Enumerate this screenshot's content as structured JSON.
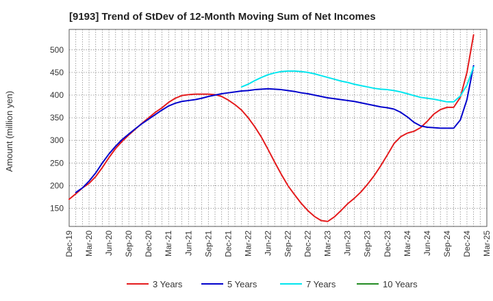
{
  "chart_data": {
    "type": "line",
    "title": "[9193]  Trend of StDev of 12-Month Moving Sum of Net Incomes",
    "ylabel": "Amount (million yen)",
    "xlabel": "",
    "ylim": [
      110,
      545
    ],
    "yticks": [
      150,
      200,
      250,
      300,
      350,
      400,
      450,
      500
    ],
    "x_tick_labels": [
      "Dec-19",
      "Mar-20",
      "Jun-20",
      "Sep-20",
      "Dec-20",
      "Mar-21",
      "Jun-21",
      "Sep-21",
      "Dec-21",
      "Mar-22",
      "Jun-22",
      "Sep-22",
      "Dec-22",
      "Mar-23",
      "Jun-23",
      "Sep-23",
      "Dec-23",
      "Mar-24",
      "Jun-24",
      "Sep-24",
      "Dec-24",
      "Mar-25"
    ],
    "grid": true,
    "legend_position": "bottom",
    "series": [
      {
        "name": "3 Years",
        "color": "#e41a1c",
        "points": [
          [
            "2019-12",
            170
          ],
          [
            "2020-01",
            182
          ],
          [
            "2020-02",
            195
          ],
          [
            "2020-03",
            205
          ],
          [
            "2020-04",
            220
          ],
          [
            "2020-05",
            240
          ],
          [
            "2020-06",
            262
          ],
          [
            "2020-07",
            282
          ],
          [
            "2020-08",
            298
          ],
          [
            "2020-09",
            312
          ],
          [
            "2020-10",
            325
          ],
          [
            "2020-11",
            338
          ],
          [
            "2020-12",
            350
          ],
          [
            "2021-01",
            362
          ],
          [
            "2021-02",
            372
          ],
          [
            "2021-03",
            384
          ],
          [
            "2021-04",
            393
          ],
          [
            "2021-05",
            399
          ],
          [
            "2021-06",
            401
          ],
          [
            "2021-07",
            402
          ],
          [
            "2021-08",
            402
          ],
          [
            "2021-09",
            402
          ],
          [
            "2021-10",
            401
          ],
          [
            "2021-11",
            397
          ],
          [
            "2021-12",
            389
          ],
          [
            "2022-01",
            379
          ],
          [
            "2022-02",
            367
          ],
          [
            "2022-03",
            350
          ],
          [
            "2022-04",
            330
          ],
          [
            "2022-05",
            307
          ],
          [
            "2022-06",
            280
          ],
          [
            "2022-07",
            252
          ],
          [
            "2022-08",
            225
          ],
          [
            "2022-09",
            200
          ],
          [
            "2022-10",
            180
          ],
          [
            "2022-11",
            161
          ],
          [
            "2022-12",
            145
          ],
          [
            "2023-01",
            132
          ],
          [
            "2023-02",
            123
          ],
          [
            "2023-03",
            121
          ],
          [
            "2023-04",
            131
          ],
          [
            "2023-05",
            145
          ],
          [
            "2023-06",
            160
          ],
          [
            "2023-07",
            172
          ],
          [
            "2023-08",
            186
          ],
          [
            "2023-09",
            203
          ],
          [
            "2023-10",
            222
          ],
          [
            "2023-11",
            244
          ],
          [
            "2023-12",
            268
          ],
          [
            "2024-01",
            293
          ],
          [
            "2024-02",
            308
          ],
          [
            "2024-03",
            316
          ],
          [
            "2024-04",
            320
          ],
          [
            "2024-05",
            328
          ],
          [
            "2024-06",
            342
          ],
          [
            "2024-07",
            358
          ],
          [
            "2024-08",
            368
          ],
          [
            "2024-09",
            373
          ],
          [
            "2024-10",
            373
          ],
          [
            "2024-11",
            395
          ],
          [
            "2024-12",
            450
          ],
          [
            "2025-01",
            533
          ]
        ]
      },
      {
        "name": "5 Years",
        "color": "#0000cc",
        "points": [
          [
            "2020-01",
            185
          ],
          [
            "2020-02",
            195
          ],
          [
            "2020-03",
            210
          ],
          [
            "2020-04",
            228
          ],
          [
            "2020-05",
            250
          ],
          [
            "2020-06",
            270
          ],
          [
            "2020-07",
            287
          ],
          [
            "2020-08",
            302
          ],
          [
            "2020-09",
            314
          ],
          [
            "2020-10",
            326
          ],
          [
            "2020-11",
            337
          ],
          [
            "2020-12",
            347
          ],
          [
            "2021-01",
            357
          ],
          [
            "2021-02",
            367
          ],
          [
            "2021-03",
            376
          ],
          [
            "2021-04",
            382
          ],
          [
            "2021-05",
            386
          ],
          [
            "2021-06",
            388
          ],
          [
            "2021-07",
            390
          ],
          [
            "2021-08",
            393
          ],
          [
            "2021-09",
            397
          ],
          [
            "2021-10",
            400
          ],
          [
            "2021-11",
            403
          ],
          [
            "2021-12",
            405
          ],
          [
            "2022-01",
            407
          ],
          [
            "2022-02",
            409
          ],
          [
            "2022-03",
            410
          ],
          [
            "2022-04",
            412
          ],
          [
            "2022-05",
            413
          ],
          [
            "2022-06",
            414
          ],
          [
            "2022-07",
            413
          ],
          [
            "2022-08",
            412
          ],
          [
            "2022-09",
            410
          ],
          [
            "2022-10",
            408
          ],
          [
            "2022-11",
            405
          ],
          [
            "2022-12",
            403
          ],
          [
            "2023-01",
            400
          ],
          [
            "2023-02",
            397
          ],
          [
            "2023-03",
            394
          ],
          [
            "2023-04",
            392
          ],
          [
            "2023-05",
            390
          ],
          [
            "2023-06",
            388
          ],
          [
            "2023-07",
            386
          ],
          [
            "2023-08",
            383
          ],
          [
            "2023-09",
            380
          ],
          [
            "2023-10",
            377
          ],
          [
            "2023-11",
            374
          ],
          [
            "2023-12",
            372
          ],
          [
            "2024-01",
            369
          ],
          [
            "2024-02",
            362
          ],
          [
            "2024-03",
            352
          ],
          [
            "2024-04",
            340
          ],
          [
            "2024-05",
            332
          ],
          [
            "2024-06",
            329
          ],
          [
            "2024-07",
            328
          ],
          [
            "2024-08",
            327
          ],
          [
            "2024-09",
            327
          ],
          [
            "2024-10",
            327
          ],
          [
            "2024-11",
            345
          ],
          [
            "2024-12",
            390
          ],
          [
            "2025-01",
            465
          ]
        ]
      },
      {
        "name": "7 Years",
        "color": "#00e5ee",
        "points": [
          [
            "2022-02",
            418
          ],
          [
            "2022-03",
            424
          ],
          [
            "2022-04",
            432
          ],
          [
            "2022-05",
            439
          ],
          [
            "2022-06",
            445
          ],
          [
            "2022-07",
            449
          ],
          [
            "2022-08",
            452
          ],
          [
            "2022-09",
            453
          ],
          [
            "2022-10",
            453
          ],
          [
            "2022-11",
            452
          ],
          [
            "2022-12",
            450
          ],
          [
            "2023-01",
            447
          ],
          [
            "2023-02",
            443
          ],
          [
            "2023-03",
            439
          ],
          [
            "2023-04",
            435
          ],
          [
            "2023-05",
            431
          ],
          [
            "2023-06",
            428
          ],
          [
            "2023-07",
            424
          ],
          [
            "2023-08",
            421
          ],
          [
            "2023-09",
            418
          ],
          [
            "2023-10",
            415
          ],
          [
            "2023-11",
            413
          ],
          [
            "2023-12",
            412
          ],
          [
            "2024-01",
            410
          ],
          [
            "2024-02",
            407
          ],
          [
            "2024-03",
            403
          ],
          [
            "2024-04",
            399
          ],
          [
            "2024-05",
            395
          ],
          [
            "2024-06",
            393
          ],
          [
            "2024-07",
            391
          ],
          [
            "2024-08",
            388
          ],
          [
            "2024-09",
            385
          ],
          [
            "2024-10",
            385
          ],
          [
            "2024-11",
            398
          ],
          [
            "2024-12",
            422
          ],
          [
            "2025-01",
            462
          ]
        ]
      },
      {
        "name": "10 Years",
        "color": "#228b22",
        "points": []
      }
    ]
  }
}
